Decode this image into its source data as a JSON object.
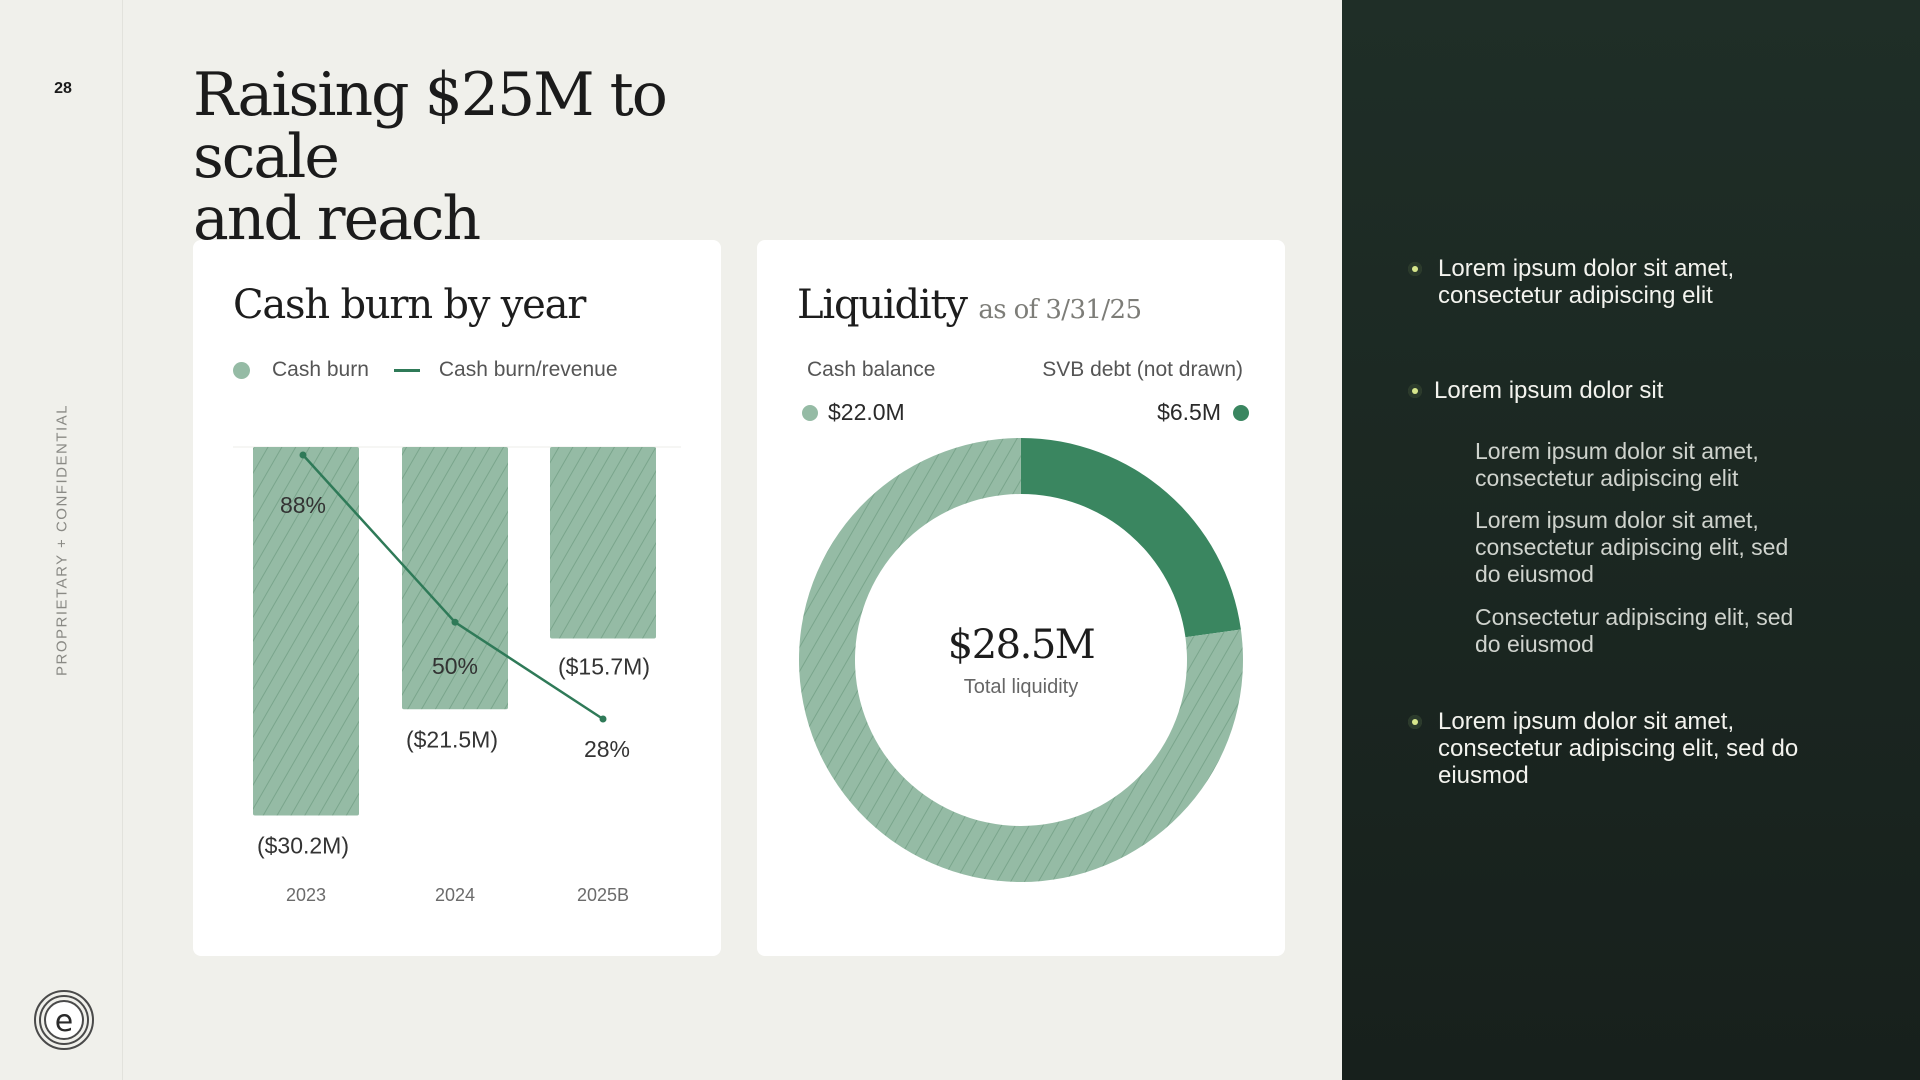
{
  "page": {
    "number": "28",
    "confidential": "PROPRIETARY + CONFIDENTIAL",
    "title_line1": "Raising $25M to scale",
    "title_line2": "and reach profitability"
  },
  "burn_card": {
    "title": "Cash burn by year",
    "legend_bar": "Cash burn",
    "legend_line": "Cash burn/revenue"
  },
  "liquidity_card": {
    "title": "Liquidity",
    "subtitle": "as of 3/31/25",
    "cash_label": "Cash balance",
    "cash_value": "$22.0M",
    "debt_label": "SVB debt (not drawn)",
    "debt_value": "$6.5M",
    "total_value": "$28.5M",
    "total_label": "Total liquidity"
  },
  "chart_data": [
    {
      "type": "bar",
      "title": "Cash burn by year",
      "categories": [
        "2023",
        "2024",
        "2025B"
      ],
      "series": [
        {
          "name": "Cash burn",
          "values": [
            -30.2,
            -21.5,
            -15.7
          ],
          "labels": [
            "($30.2M)",
            "($21.5M)",
            "($15.7M)"
          ],
          "color": "#95bba5"
        },
        {
          "name": "Cash burn/revenue",
          "type": "line",
          "values": [
            88,
            50,
            28
          ],
          "labels": [
            "88%",
            "50%",
            "28%"
          ],
          "color": "#2f7a58"
        }
      ],
      "ylim": [
        -32,
        0
      ],
      "legend_position": "top-left"
    },
    {
      "type": "pie",
      "title": "Liquidity",
      "subtitle": "as of 3/31/25",
      "donut": true,
      "slices": [
        {
          "name": "Cash balance",
          "value": 22.0,
          "label": "$22.0M",
          "color": "#95bba5",
          "hatched": true
        },
        {
          "name": "SVB debt (not drawn)",
          "value": 6.5,
          "label": "$6.5M",
          "color": "#3a8660",
          "hatched": false
        }
      ],
      "center_label": "$28.5M",
      "center_sublabel": "Total liquidity"
    }
  ],
  "panel": {
    "bullet1": "Lorem ipsum dolor sit amet, consectetur adipiscing elit",
    "bullet2": "Lorem ipsum dolor sit",
    "sub1": "Lorem ipsum dolor sit amet, consectetur adipiscing elit",
    "sub2": "Lorem ipsum dolor sit amet, consectetur adipiscing elit, sed do eiusmod",
    "sub3": "Consectetur adipiscing elit, sed do eiusmod",
    "bullet3": "Lorem ipsum dolor sit amet, consectetur adipiscing elit, sed do eiusmod"
  },
  "colors": {
    "background": "#f0f0eb",
    "accent_green": "#3a8660",
    "bar_green": "#95bba5",
    "panel_dark": "#1b2621",
    "bullet_yellow": "#d7e68c"
  },
  "icons": {
    "logo": "e-logo-icon",
    "bullet": "bullet-dot-icon"
  }
}
